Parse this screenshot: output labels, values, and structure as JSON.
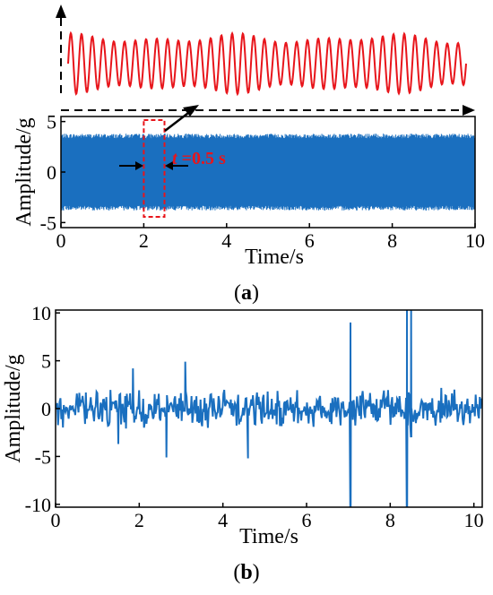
{
  "chart_data": [
    {
      "panel": "a",
      "type": "line",
      "xlabel": "Time/s",
      "ylabel": "Amplitude/g",
      "xlim": [
        0,
        10
      ],
      "ylim": [
        -5.5,
        5.5
      ],
      "xticks": [
        "0",
        "2",
        "4",
        "6",
        "8",
        "10"
      ],
      "yticks": [
        "5",
        "0",
        "-5"
      ],
      "grid": false,
      "series": [
        {
          "color": "#1a6fbf",
          "description_values": {
            "amplitude_envelope": 3.8,
            "t_start": 0.0,
            "t_end": 10.0
          }
        }
      ],
      "inset_zoom": {
        "color": "#e8151b",
        "cycles_shown": 37,
        "amplitude_shown": [
          -1,
          1
        ]
      },
      "highlight_window": {
        "t_start": 2.0,
        "t_end": 2.5,
        "color": "#e8151b"
      },
      "annotation": {
        "symbol": "t",
        "text": " =0.5 s"
      },
      "panel_label": {
        "open": "(",
        "letter": "a",
        "close": ")"
      }
    },
    {
      "panel": "b",
      "type": "line",
      "xlabel": "Time/s",
      "ylabel": "Amplitude/g",
      "xlim": [
        0,
        10.2
      ],
      "ylim": [
        -10.3,
        10.3
      ],
      "xticks": [
        "0",
        "2",
        "4",
        "6",
        "8",
        "10"
      ],
      "yticks": [
        "10",
        "5",
        "0",
        "-5",
        "-10"
      ],
      "grid": false,
      "series": [
        {
          "color": "#1a6fbf",
          "spikes": [
            {
              "t": 7.05,
              "low": -10.3,
              "high": 9.0
            },
            {
              "t": 8.4,
              "low": -10.3,
              "high": 10.3
            },
            {
              "t": 8.5,
              "low": -3.0,
              "high": 10.3
            }
          ],
          "peaks": [
            {
              "t": 1.85,
              "y": 4.2
            },
            {
              "t": 3.1,
              "y": 4.9
            },
            {
              "t": 2.65,
              "y": -5.1
            },
            {
              "t": 4.6,
              "y": -5.2
            },
            {
              "t": 1.5,
              "y": -3.7
            }
          ],
          "noise_range": [
            -3.5,
            3.0
          ]
        }
      ],
      "panel_label": {
        "open": "(",
        "letter": "b",
        "close": ")"
      }
    }
  ]
}
